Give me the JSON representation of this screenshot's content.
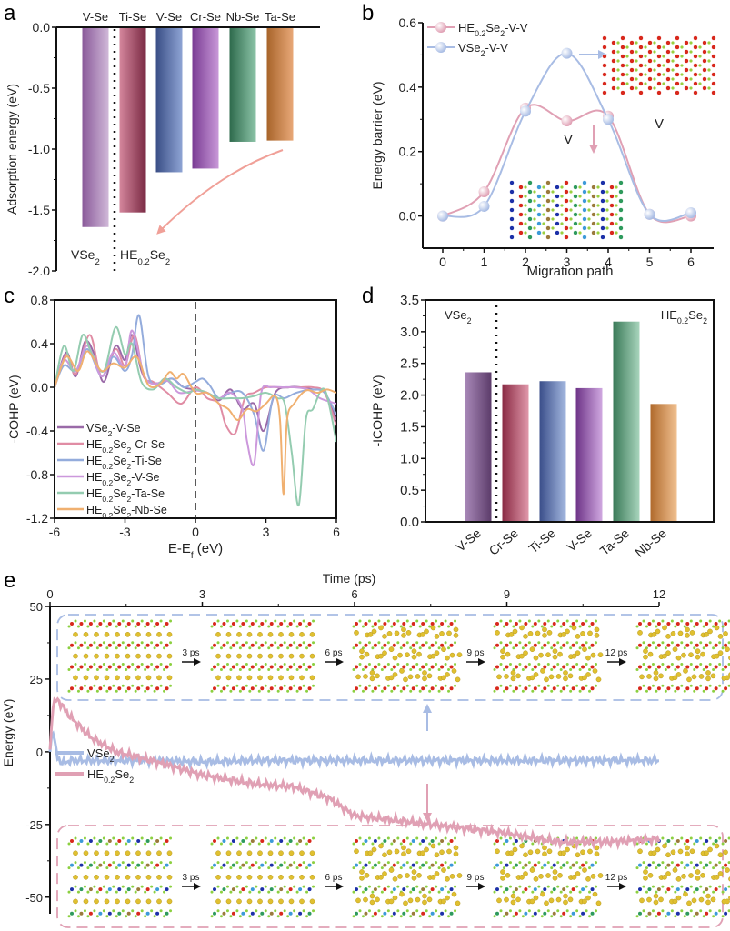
{
  "panels": {
    "a": "a",
    "b": "b",
    "c": "c",
    "d": "d",
    "e": "e"
  },
  "chart_data": [
    {
      "id": "a",
      "type": "bar",
      "title": "",
      "xlabel": "",
      "ylabel": "Adsorption energy (eV)",
      "ylim": [
        -2.0,
        0.0
      ],
      "yticks": [
        "0.0",
        "-0.5",
        "-1.0",
        "-1.5",
        "-2.0"
      ],
      "ytick_values": [
        0.0,
        -0.5,
        -1.0,
        -1.5,
        -2.0
      ],
      "categories": [
        "V-Se",
        "Ti-Se",
        "V-Se",
        "Cr-Se",
        "Nb-Se",
        "Ta-Se"
      ],
      "values": [
        -1.64,
        -1.52,
        -1.19,
        -1.16,
        -0.94,
        -0.93
      ],
      "colors": [
        "#b48cc0",
        "#d4869c",
        "#8ea4d4",
        "#c898d8",
        "#8cc4a8",
        "#e8a878"
      ],
      "dark_colors": [
        "#8a5a9a",
        "#7a2a44",
        "#3a4e86",
        "#7a3c94",
        "#2e6a4c",
        "#a8642a"
      ],
      "group_labels": [
        "VSe₂",
        "HE₀.₂Se₂"
      ],
      "group_label_parts": [
        {
          "base": "VSe",
          "sub1": "",
          "mid": "",
          "sub2": "2"
        },
        {
          "base": "HE",
          "sub1": "0.2",
          "mid": "Se",
          "sub2": "2"
        }
      ],
      "divider_after_index": 0,
      "annotation": "arrow from Ta-Se down toward HE₀.₂Se₂ label"
    },
    {
      "id": "b",
      "type": "line",
      "xlabel": "Migration path",
      "ylabel": "Energy barrier (eV)",
      "xlim": [
        -0.5,
        6.5
      ],
      "ylim": [
        -0.1,
        0.6
      ],
      "xticks": [
        "0",
        "1",
        "2",
        "3",
        "4",
        "5",
        "6"
      ],
      "yticks": [
        "0.0",
        "0.2",
        "0.4",
        "0.6"
      ],
      "ytick_values": [
        0.0,
        0.2,
        0.4,
        0.6
      ],
      "x": [
        0,
        1,
        2,
        3,
        4,
        5,
        6
      ],
      "series": [
        {
          "name": "HE₀.₂Se₂-V-V",
          "name_parts": {
            "base": "HE",
            "sub1": "0.2",
            "mid": "Se",
            "sub2": "2",
            "tail": "-V-V"
          },
          "color": "#e0a0b4",
          "values": [
            0.0,
            0.075,
            0.335,
            0.295,
            0.31,
            0.005,
            0.0
          ]
        },
        {
          "name": "VSe₂-V-V",
          "name_parts": {
            "base": "VSe",
            "sub1": "",
            "mid": "",
            "sub2": "2",
            "tail": "-V-V"
          },
          "color": "#a8bce4",
          "values": [
            0.0,
            0.03,
            0.325,
            0.505,
            0.3,
            0.005,
            0.01
          ]
        }
      ],
      "annotations": [
        "V",
        "V"
      ],
      "legend": "top-left"
    },
    {
      "id": "c",
      "type": "line",
      "xlabel": "E-E_f (eV)",
      "xlabel_parts": {
        "pre": "E-E",
        "sub": "f",
        "post": " (eV)"
      },
      "ylabel": "-COHP (eV)",
      "xlim": [
        -6,
        6
      ],
      "ylim": [
        -1.2,
        0.8
      ],
      "xticks": [
        "-6",
        "-3",
        "0",
        "3",
        "6"
      ],
      "xtick_values": [
        -6,
        -3,
        0,
        3,
        6
      ],
      "yticks": [
        "0.8",
        "0.4",
        "0.0",
        "-0.4",
        "-0.8",
        "-1.2"
      ],
      "ytick_values": [
        0.8,
        0.4,
        0.0,
        -0.4,
        -0.8,
        -1.2
      ],
      "fermi_line_x": 0,
      "legend": "bottom-left",
      "series": [
        {
          "name": "VSe₂-V-Se",
          "parts": {
            "base": "VSe",
            "sub1": "",
            "mid": "",
            "sub2": "2",
            "tail": "-V-Se"
          },
          "color": "#9a6aa8",
          "x": [
            -6,
            -5.5,
            -5.1,
            -4.7,
            -4.3,
            -3.9,
            -3.4,
            -3.0,
            -2.7,
            -2.3,
            -2.0,
            -1.5,
            -1.0,
            -0.5,
            0,
            0.5,
            1.0,
            1.5,
            2.0,
            2.5,
            2.9,
            3.4,
            4.0,
            4.5,
            5.0,
            5.5,
            6.0
          ],
          "y": [
            0.0,
            0.32,
            0.1,
            0.42,
            0.3,
            0.05,
            0.38,
            0.25,
            0.48,
            0.15,
            0.05,
            0.04,
            0.08,
            0.0,
            -0.02,
            -0.05,
            -0.12,
            -0.02,
            -0.2,
            -0.15,
            -0.4,
            -0.05,
            0.0,
            0.0,
            -0.02,
            -0.05,
            -0.3
          ]
        },
        {
          "name": "HE₀.₂Se₂-Cr-Se",
          "parts": {
            "base": "HE",
            "sub1": "0.2",
            "mid": "Se",
            "sub2": "2",
            "tail": "-Cr-Se"
          },
          "color": "#e08ca4",
          "x": [
            -6,
            -5.5,
            -5.1,
            -4.5,
            -4.0,
            -3.4,
            -3.0,
            -2.6,
            -2.2,
            -1.8,
            -1.2,
            -0.6,
            0,
            0.5,
            1.0,
            1.3,
            1.7,
            2.1,
            2.5,
            3.0,
            3.5,
            4.0,
            4.5,
            5.0,
            5.5,
            6.0
          ],
          "y": [
            0.0,
            0.3,
            0.12,
            0.48,
            0.1,
            0.35,
            0.2,
            0.48,
            0.1,
            0.05,
            -0.05,
            -0.15,
            0.0,
            -0.1,
            -0.15,
            -0.35,
            -0.42,
            -0.1,
            -0.05,
            0.0,
            0.0,
            0.0,
            0.0,
            0.0,
            -0.05,
            -0.35
          ]
        },
        {
          "name": "HE₀.₂Se₂-Ti-Se",
          "parts": {
            "base": "HE",
            "sub1": "0.2",
            "mid": "Se",
            "sub2": "2",
            "tail": "-Ti-Se"
          },
          "color": "#94acdc",
          "x": [
            -6,
            -5.6,
            -5.1,
            -4.6,
            -4.0,
            -3.5,
            -3.0,
            -2.7,
            -2.4,
            -2.0,
            -1.5,
            -1.0,
            -0.5,
            0,
            0.3,
            0.6,
            1.0,
            1.5,
            2.0,
            2.5,
            2.9,
            3.3,
            3.8,
            4.3,
            5.0,
            5.5,
            6.0
          ],
          "y": [
            0.0,
            0.2,
            0.15,
            0.35,
            0.1,
            0.28,
            0.15,
            0.3,
            0.66,
            0.1,
            0.03,
            0.08,
            0.0,
            0.05,
            0.08,
            0.02,
            -0.1,
            -0.05,
            -0.05,
            -0.25,
            -0.58,
            -0.1,
            -0.1,
            -0.05,
            -0.02,
            -0.05,
            -0.25
          ]
        },
        {
          "name": "HE₀.₂Se₂-V-Se",
          "parts": {
            "base": "HE",
            "sub1": "0.2",
            "mid": "Se",
            "sub2": "2",
            "tail": "-V-Se"
          },
          "color": "#cc98dc",
          "x": [
            -6,
            -5.6,
            -5.1,
            -4.6,
            -4.0,
            -3.5,
            -3.0,
            -2.7,
            -2.2,
            -1.8,
            -1.2,
            -0.7,
            0,
            0.5,
            1.0,
            1.5,
            2.0,
            2.2,
            2.5,
            2.8,
            3.2,
            3.7,
            4.2,
            4.8,
            5.3,
            6.0
          ],
          "y": [
            0.0,
            0.25,
            0.15,
            0.38,
            0.1,
            0.32,
            0.18,
            0.52,
            0.12,
            0.03,
            0.06,
            -0.05,
            -0.03,
            -0.05,
            -0.1,
            -0.05,
            -0.2,
            -0.5,
            -0.7,
            -0.05,
            0.0,
            0.0,
            0.0,
            -0.02,
            -0.1,
            -0.15
          ]
        },
        {
          "name": "HE₀.₂Se₂-Ta-Se",
          "parts": {
            "base": "HE",
            "sub1": "0.2",
            "mid": "Se",
            "sub2": "2",
            "tail": "-Ta-Se"
          },
          "color": "#94ccb0",
          "x": [
            -6,
            -5.6,
            -5.2,
            -4.8,
            -4.4,
            -3.9,
            -3.4,
            -3.0,
            -2.7,
            -2.3,
            -1.8,
            -1.3,
            -0.8,
            -0.3,
            0,
            0.5,
            1.0,
            1.5,
            2.0,
            2.5,
            3.0,
            3.5,
            3.8,
            4.1,
            4.4,
            4.7,
            5.0,
            5.5,
            6.0
          ],
          "y": [
            0.0,
            0.38,
            0.15,
            0.48,
            0.3,
            0.15,
            0.55,
            0.3,
            0.4,
            0.05,
            -0.02,
            0.08,
            0.0,
            -0.05,
            -0.02,
            -0.05,
            -0.1,
            -0.1,
            -0.1,
            -0.08,
            -0.05,
            -0.1,
            -0.15,
            -0.6,
            -1.08,
            -0.3,
            -0.2,
            -0.02,
            -0.5
          ]
        },
        {
          "name": "HE₀.₂Se₂-Nb-Se",
          "parts": {
            "base": "HE",
            "sub1": "0.2",
            "mid": "Se",
            "sub2": "2",
            "tail": "-Nb-Se"
          },
          "color": "#f0b070",
          "x": [
            -6,
            -5.5,
            -5.0,
            -4.6,
            -4.0,
            -3.5,
            -3.0,
            -2.5,
            -2.0,
            -1.5,
            -1.1,
            -0.8,
            -0.5,
            0,
            0.5,
            1.0,
            1.4,
            1.8,
            2.2,
            2.6,
            3.0,
            3.4,
            3.6,
            3.75,
            3.9,
            4.2,
            4.7,
            5.2,
            5.6,
            6.0
          ],
          "y": [
            0.0,
            0.28,
            0.15,
            0.33,
            0.15,
            0.22,
            0.18,
            0.28,
            0.02,
            0.03,
            0.14,
            0.08,
            0.12,
            -0.05,
            -0.05,
            -0.15,
            -0.2,
            -0.3,
            -0.2,
            -0.22,
            -0.15,
            -0.08,
            -0.3,
            -0.98,
            -0.3,
            -0.15,
            -0.03,
            -0.05,
            -0.02,
            -0.05
          ]
        }
      ]
    },
    {
      "id": "d",
      "type": "bar",
      "xlabel": "",
      "ylabel": "-ICOHP (eV)",
      "ylim": [
        0.0,
        3.5
      ],
      "yticks": [
        "0.0",
        "0.5",
        "1.0",
        "1.5",
        "2.0",
        "2.5",
        "3.0",
        "3.5"
      ],
      "ytick_values": [
        0.0,
        0.5,
        1.0,
        1.5,
        2.0,
        2.5,
        3.0,
        3.5
      ],
      "categories": [
        "V-Se",
        "Cr-Se",
        "Ti-Se",
        "V-Se",
        "Ta-Se",
        "Nb-Se"
      ],
      "values": [
        2.36,
        2.17,
        2.22,
        2.11,
        3.16,
        1.86
      ],
      "colors": [
        "#a888b8",
        "#e098aa",
        "#a4b8e0",
        "#d0a8e0",
        "#a8d4bc",
        "#f0c090"
      ],
      "dark_colors": [
        "#5c3c6a",
        "#8a2a44",
        "#3a4e8a",
        "#6e3488",
        "#3a7a58",
        "#b06a2c"
      ],
      "group_labels": [
        "VSe₂",
        "HE₀.₂Se₂"
      ],
      "group_label_parts": [
        {
          "base": "VSe",
          "sub1": "",
          "mid": "",
          "sub2": "2"
        },
        {
          "base": "HE",
          "sub1": "0.2",
          "mid": "Se",
          "sub2": "2"
        }
      ],
      "divider_after_index": 0
    },
    {
      "id": "e",
      "type": "line",
      "xlabel": "Time (ps)",
      "ylabel": "Energy (eV)",
      "xlim": [
        0,
        12
      ],
      "ylim": [
        -55,
        50
      ],
      "xticks": [
        "0",
        "3",
        "6",
        "9",
        "12"
      ],
      "xtick_values": [
        0,
        3,
        6,
        9,
        12
      ],
      "yticks": [
        "50",
        "25",
        "0",
        "-25",
        "-50"
      ],
      "ytick_values": [
        50,
        25,
        0,
        -25,
        -50
      ],
      "legend": "left",
      "series": [
        {
          "name": "VSe₂",
          "parts": {
            "base": "VSe",
            "sub1": "",
            "mid": "",
            "sub2": "2",
            "tail": ""
          },
          "color": "#a8bce4",
          "x": [
            0,
            0.05,
            0.1,
            0.15,
            0.25,
            0.4,
            1,
            2,
            3,
            4,
            5,
            6,
            7,
            8,
            9,
            10,
            11,
            12
          ],
          "y": [
            0,
            9,
            2,
            -2,
            -4,
            -3,
            -3,
            -3,
            -3.5,
            -3,
            -3,
            -3,
            -3,
            -3,
            -3,
            -3,
            -3,
            -3
          ]
        },
        {
          "name": "HE₀.₂Se₂",
          "parts": {
            "base": "HE",
            "sub1": "0.2",
            "mid": "Se",
            "sub2": "2",
            "tail": ""
          },
          "color": "#e0a0b4",
          "x": [
            0,
            0.05,
            0.15,
            0.4,
            0.8,
            1.3,
            2,
            3,
            4,
            4.8,
            5.5,
            6,
            7,
            8,
            9,
            10,
            11,
            12
          ],
          "y": [
            0,
            16,
            18,
            12,
            5,
            0,
            -3,
            -8,
            -11,
            -12,
            -16,
            -22,
            -24,
            -26,
            -28,
            -31,
            -31,
            -30
          ]
        }
      ],
      "snapshot_labels": [
        "3 ps",
        "6 ps",
        "9 ps",
        "12 ps"
      ],
      "snapshot_rows": [
        "VSe₂ (top, blue dashed box)",
        "HE₀.₂Se₂ (bottom, pink dashed box)"
      ]
    }
  ]
}
